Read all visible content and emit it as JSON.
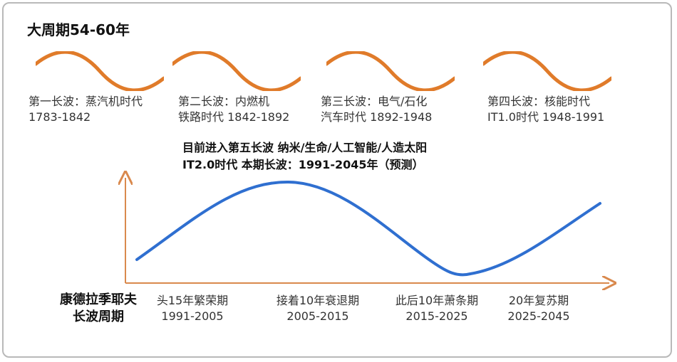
{
  "title": "大周期54-60年",
  "colors": {
    "wave": "#e07b2a",
    "axis": "#d9894d",
    "curve": "#2f6fd0"
  },
  "eras": [
    {
      "line1": "第一长波：蒸汽机时代",
      "line2": "1783-1842"
    },
    {
      "line1": "第二长波：内燃机",
      "line2": "铁路时代 1842-1892"
    },
    {
      "line1": "第三长波：电气/石化",
      "line2": "汽车时代 1892-1948"
    },
    {
      "line1": "第四长波：核能时代",
      "line2": "IT1.0时代 1948-1991"
    }
  ],
  "current": {
    "line1": "目前进入第五长波  纳米/生命/人工智能/人造太阳",
    "line2": "IT2.0时代  本期长波：1991-2045年（预测）"
  },
  "axis_title": {
    "line1": "康德拉季耶夫",
    "line2": "长波周期"
  },
  "phases": [
    {
      "label": "头15年繁荣期",
      "years": "1991-2005"
    },
    {
      "label": "接着10年衰退期",
      "years": "2005-2015"
    },
    {
      "label": "此后10年萧条期",
      "years": "2015-2025"
    },
    {
      "label": "20年复苏期",
      "years": "2025-2045"
    }
  ]
}
